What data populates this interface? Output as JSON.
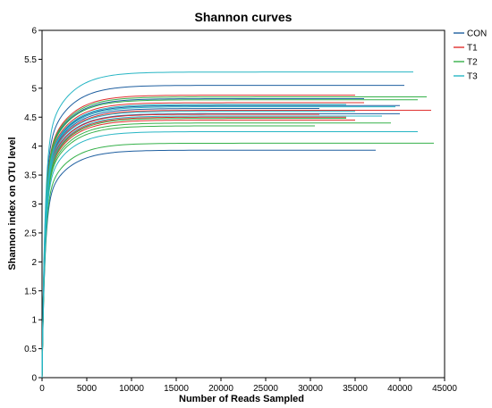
{
  "chart_data": {
    "type": "line",
    "title": "Shannon curves",
    "xlabel": "Number of Reads Sampled",
    "ylabel": "Shannon index on OTU level",
    "xlim": [
      0,
      45000
    ],
    "ylim": [
      0,
      6
    ],
    "xticks": [
      "0",
      "5000",
      "10000",
      "15000",
      "20000",
      "25000",
      "30000",
      "35000",
      "40000",
      "45000"
    ],
    "yticks": [
      "0",
      "0.5",
      "1",
      "1.5",
      "2",
      "2.5",
      "3",
      "3.5",
      "4",
      "4.5",
      "5",
      "5.5",
      "6"
    ],
    "grid": false,
    "legend_position": "right",
    "colors": {
      "CON": "#1f5fa0",
      "T1": "#e0302f",
      "T2": "#36b14a",
      "T3": "#26b5c4"
    },
    "legend": [
      "CON",
      "T1",
      "T2",
      "T3"
    ],
    "series": [
      {
        "name": "CON",
        "final_shannon": 5.05,
        "max_reads": 40500
      },
      {
        "name": "CON",
        "final_shannon": 4.82,
        "max_reads": 36000
      },
      {
        "name": "CON",
        "final_shannon": 4.7,
        "max_reads": 40000
      },
      {
        "name": "CON",
        "final_shannon": 4.65,
        "max_reads": 31000
      },
      {
        "name": "CON",
        "final_shannon": 4.56,
        "max_reads": 40000
      },
      {
        "name": "CON",
        "final_shannon": 3.93,
        "max_reads": 37300
      },
      {
        "name": "T1",
        "final_shannon": 4.88,
        "max_reads": 35000
      },
      {
        "name": "T1",
        "final_shannon": 4.75,
        "max_reads": 36000
      },
      {
        "name": "T1",
        "final_shannon": 4.62,
        "max_reads": 43500
      },
      {
        "name": "T1",
        "final_shannon": 4.55,
        "max_reads": 31000
      },
      {
        "name": "T1",
        "final_shannon": 4.5,
        "max_reads": 34000
      },
      {
        "name": "T1",
        "final_shannon": 4.45,
        "max_reads": 35000
      },
      {
        "name": "T2",
        "final_shannon": 4.85,
        "max_reads": 43000
      },
      {
        "name": "T2",
        "final_shannon": 4.8,
        "max_reads": 42000
      },
      {
        "name": "T2",
        "final_shannon": 4.48,
        "max_reads": 34000
      },
      {
        "name": "T2",
        "final_shannon": 4.4,
        "max_reads": 39000
      },
      {
        "name": "T2",
        "final_shannon": 4.35,
        "max_reads": 30500
      },
      {
        "name": "T2",
        "final_shannon": 4.05,
        "max_reads": 43800
      },
      {
        "name": "T3",
        "final_shannon": 5.28,
        "max_reads": 41500
      },
      {
        "name": "T3",
        "final_shannon": 4.72,
        "max_reads": 34000
      },
      {
        "name": "T3",
        "final_shannon": 4.68,
        "max_reads": 39500
      },
      {
        "name": "T3",
        "final_shannon": 4.6,
        "max_reads": 35000
      },
      {
        "name": "T3",
        "final_shannon": 4.52,
        "max_reads": 38000
      },
      {
        "name": "T3",
        "final_shannon": 4.25,
        "max_reads": 42000
      }
    ]
  }
}
